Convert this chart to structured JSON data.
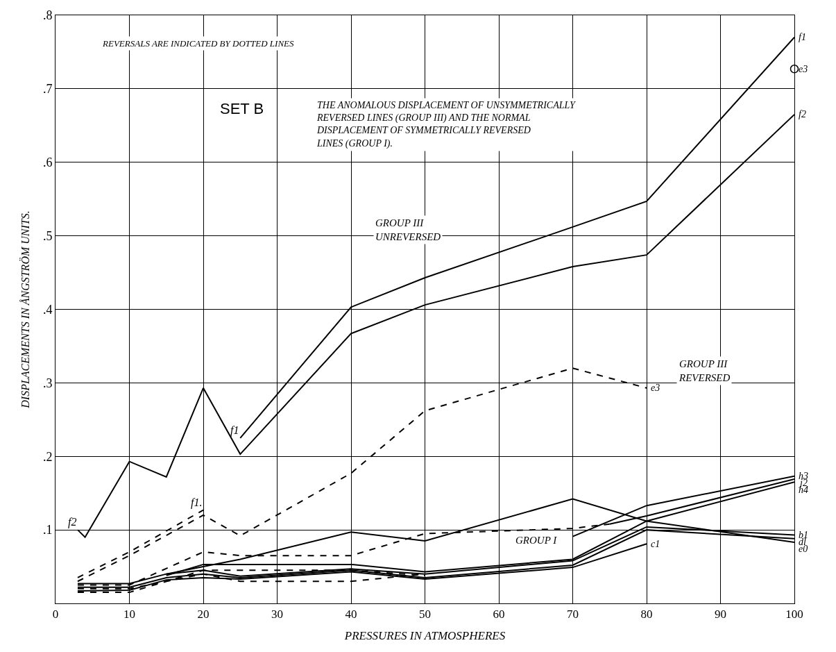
{
  "chart_data": {
    "type": "line",
    "xlabel": "PRESSURES IN ATMOSPHERES",
    "ylabel": "DISPLACEMENTS IN ÅNGSTRÖM UNITS.",
    "xlim": [
      0,
      100
    ],
    "xticks": [
      0,
      10,
      20,
      30,
      40,
      50,
      60,
      70,
      80,
      90,
      100
    ],
    "ylim": [
      0,
      0.8
    ],
    "yticks": [
      {
        "value": 0.1,
        "label": ".1"
      },
      {
        "value": 0.2,
        "label": ".2"
      },
      {
        "value": 0.3,
        "label": ".3"
      },
      {
        "value": 0.4,
        "label": ".4"
      },
      {
        "value": 0.5,
        "label": ".5"
      },
      {
        "value": 0.6,
        "label": ".6"
      },
      {
        "value": 0.7,
        "label": ".7"
      },
      {
        "value": 0.8,
        "label": ".8"
      }
    ],
    "grid": true,
    "legend": false,
    "marker": "none",
    "line_style": "solid",
    "series": [
      {
        "name": "f2",
        "color": "#000000",
        "x": [
          3,
          4,
          10,
          15,
          20,
          25,
          40,
          50,
          70,
          80,
          100
        ],
        "values": [
          0.1,
          0.09,
          0.193,
          0.172,
          0.293,
          0.203,
          0.367,
          0.406,
          0.458,
          0.474,
          0.665
        ]
      },
      {
        "name": "f1",
        "color": "#000000",
        "x": [
          25,
          40,
          50,
          70,
          80,
          100
        ],
        "values": [
          0.225,
          0.403,
          0.443,
          0.512,
          0.547,
          0.77
        ]
      },
      {
        "name": "e3",
        "color": "#000000",
        "line_style": "dashed",
        "x": [
          3,
          10,
          20,
          25,
          40,
          50,
          70,
          80
        ],
        "values": [
          0.03,
          0.065,
          0.12,
          0.092,
          0.177,
          0.262,
          0.32,
          0.293
        ]
      },
      {
        "color": "#000000",
        "line_style": "dashed",
        "x": [
          3,
          10,
          20
        ],
        "values": [
          0.035,
          0.07,
          0.127
        ]
      },
      {
        "name": "e3",
        "color": "#000000",
        "type": "scatter",
        "marker": "circle",
        "x": [
          100
        ],
        "values": [
          0.727
        ]
      },
      {
        "name": "e0",
        "color": "#000000",
        "x": [
          15,
          20,
          25,
          40,
          50,
          70,
          80,
          100
        ],
        "values": [
          0.04,
          0.05,
          0.06,
          0.097,
          0.085,
          0.142,
          0.112,
          0.083
        ]
      },
      {
        "name": "h3",
        "color": "#000000",
        "x": [
          70,
          80,
          100
        ],
        "values": [
          0.091,
          0.133,
          0.173
        ]
      },
      {
        "name": "j2",
        "color": "#000000",
        "x": [
          75,
          80,
          100
        ],
        "values": [
          0.108,
          0.119,
          0.169
        ]
      },
      {
        "color": "#000000",
        "line_style": "dashed",
        "x": [
          3,
          10,
          20,
          25,
          40,
          50,
          70,
          75
        ],
        "values": [
          0.025,
          0.025,
          0.07,
          0.065,
          0.065,
          0.095,
          0.102,
          0.108
        ]
      },
      {
        "name": "h4",
        "color": "#000000",
        "x": [
          15,
          20,
          40,
          50,
          70,
          80,
          100
        ],
        "values": [
          0.038,
          0.053,
          0.053,
          0.043,
          0.06,
          0.112,
          0.165
        ]
      },
      {
        "name": "b1",
        "color": "#000000",
        "x": [
          3,
          10,
          15,
          20,
          25,
          40,
          50,
          70,
          80,
          100
        ],
        "values": [
          0.027,
          0.027,
          0.04,
          0.045,
          0.037,
          0.047,
          0.04,
          0.058,
          0.104,
          0.093
        ]
      },
      {
        "name": "dl",
        "color": "#000000",
        "x": [
          3,
          10,
          15,
          20,
          25,
          40,
          50,
          70,
          80,
          100
        ],
        "values": [
          0.022,
          0.022,
          0.035,
          0.04,
          0.035,
          0.045,
          0.035,
          0.052,
          0.1,
          0.088
        ]
      },
      {
        "name": "c1",
        "color": "#000000",
        "x": [
          3,
          10,
          15,
          20,
          25,
          40,
          50,
          70,
          80
        ],
        "values": [
          0.017,
          0.018,
          0.032,
          0.035,
          0.033,
          0.043,
          0.033,
          0.049,
          0.081
        ]
      },
      {
        "color": "#000000",
        "line_style": "dashed",
        "x": [
          3,
          10,
          20,
          25,
          40,
          50
        ],
        "values": [
          0.02,
          0.02,
          0.04,
          0.03,
          0.03,
          0.04
        ]
      },
      {
        "color": "#000000",
        "line_style": "dashed",
        "x": [
          3,
          10,
          20,
          40,
          50
        ],
        "values": [
          0.015,
          0.015,
          0.045,
          0.045,
          0.038
        ]
      }
    ],
    "annotations": [
      {
        "text": "f2",
        "x": 3,
        "y": 0.1
      },
      {
        "text": "f1",
        "x": 25,
        "y": 0.225
      },
      {
        "text": "f1.",
        "x": 20,
        "y": 0.127
      },
      "REVERSALS ARE INDICATED BY DOTTED LINES",
      "SET B",
      "THE ANOMALOUS DISPLACEMENT OF UNSYMMETRICALLY\nREVERSED LINES (GROUP III) AND THE NORMAL\nDISPLACEMENT OF SYMMETRICALLY REVERSED\nLINES (GROUP I).",
      "GROUP III\nUNREVERSED",
      "GROUP III\nREVERSED",
      "GROUP I"
    ]
  }
}
